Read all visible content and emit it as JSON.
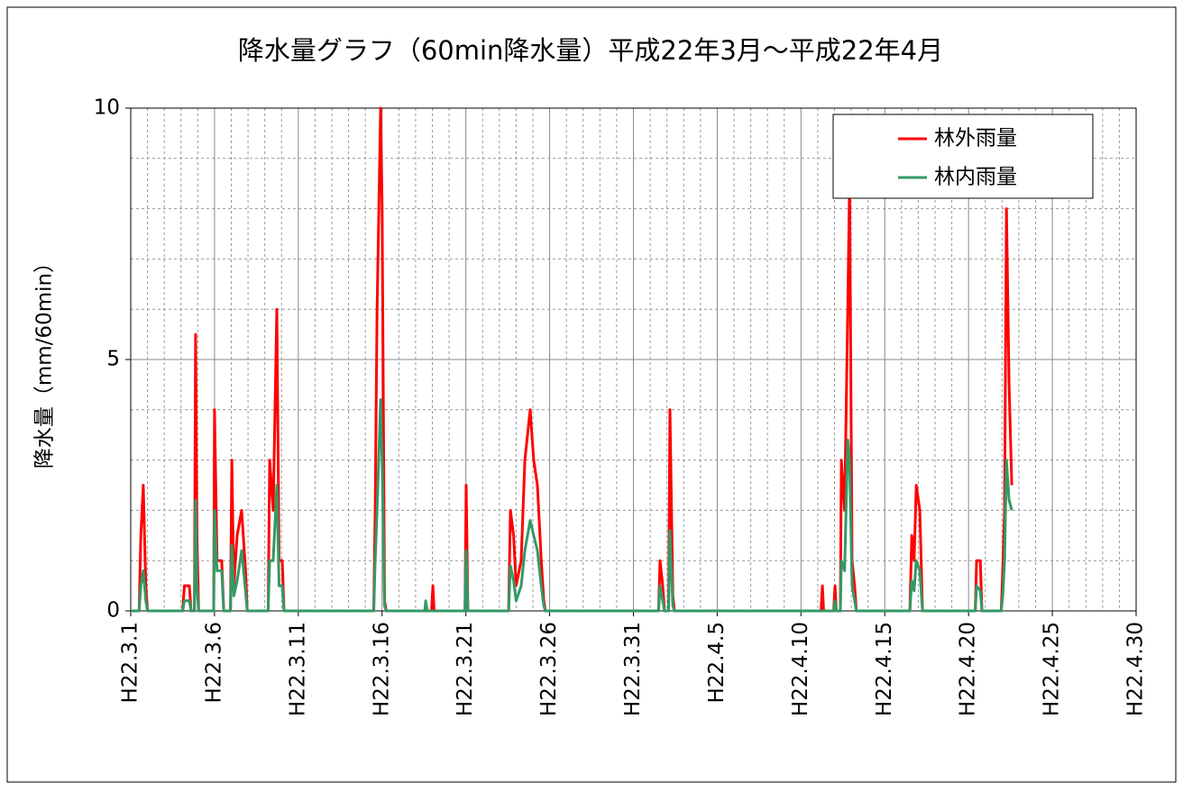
{
  "chart_data": {
    "type": "line",
    "title": "降水量グラフ（60min降水量）平成22年3月～平成22年4月",
    "y_label": "降水量（mm/60min）",
    "x": [
      0,
      0.5,
      0.6,
      0.75,
      0.9,
      1.0,
      3.1,
      3.2,
      3.5,
      3.6,
      3.8,
      3.87,
      3.95,
      4.05,
      4.95,
      5.0,
      5.15,
      5.43,
      5.55,
      5.95,
      6.03,
      6.15,
      6.35,
      6.62,
      6.85,
      6.95,
      8.2,
      8.29,
      8.5,
      8.72,
      8.85,
      9.04,
      9.15,
      14.5,
      14.59,
      14.7,
      14.91,
      15.0,
      15.15,
      15.25,
      17.55,
      17.6,
      17.7,
      17.95,
      18.03,
      18.1,
      19.95,
      20.02,
      20.12,
      22.55,
      22.66,
      22.85,
      23.0,
      23.3,
      23.52,
      23.84,
      24.05,
      24.27,
      24.5,
      24.65,
      24.75,
      31.5,
      31.59,
      31.75,
      31.85,
      32.1,
      32.18,
      32.35,
      32.45,
      41.2,
      41.28,
      41.35,
      41.95,
      42.03,
      42.1,
      42.35,
      42.41,
      42.6,
      42.79,
      42.9,
      43.05,
      43.2,
      43.3,
      46.5,
      46.61,
      46.75,
      46.88,
      47.09,
      47.25,
      50.4,
      50.48,
      50.7,
      50.8,
      51.95,
      52.04,
      52.15,
      52.26,
      52.42,
      52.58
    ],
    "series": [
      {
        "name": "林外雨量",
        "color": "#ff0000",
        "values": [
          0,
          0,
          1.5,
          2.5,
          0.5,
          0,
          0,
          0.5,
          0.5,
          0,
          0,
          5.5,
          1.5,
          0,
          0,
          4,
          1,
          1,
          0,
          0,
          3,
          0.5,
          1.5,
          2,
          0.8,
          0,
          0,
          3,
          2,
          6,
          1,
          1,
          0,
          0,
          2,
          6,
          10,
          8,
          0.2,
          0,
          0,
          0,
          0,
          0,
          0.5,
          0,
          0,
          2.5,
          0,
          0,
          2,
          1.5,
          0.5,
          1,
          3,
          4,
          3,
          2.5,
          1,
          0.2,
          0,
          0,
          1,
          0.5,
          0,
          0,
          4,
          0.3,
          0,
          0,
          0.5,
          0,
          0,
          0.5,
          0,
          0,
          3,
          2,
          6,
          8.5,
          1,
          0.5,
          0,
          0,
          1.5,
          1,
          2.5,
          2,
          0,
          0,
          1,
          1,
          0,
          0,
          0.8,
          2,
          8,
          4.5,
          2.5
        ]
      },
      {
        "name": "林内雨量",
        "color": "#339966",
        "values": [
          0,
          0,
          0.5,
          0.8,
          0.2,
          0,
          0,
          0.2,
          0.2,
          0,
          0,
          2.2,
          0.5,
          0,
          0,
          2,
          0.8,
          0.8,
          0,
          0,
          1.3,
          0.3,
          0.6,
          1.2,
          0.4,
          0,
          0,
          1,
          1,
          2.5,
          0.5,
          0.5,
          0,
          0,
          1,
          2,
          4.2,
          3,
          0.1,
          0,
          0,
          0.2,
          0,
          0,
          0,
          0,
          0,
          1.2,
          0,
          0,
          0.9,
          0.6,
          0.2,
          0.5,
          1.2,
          1.8,
          1.5,
          1.2,
          0.5,
          0.1,
          0,
          0,
          0.5,
          0.2,
          0,
          0,
          1.6,
          0.1,
          0,
          0,
          0,
          0,
          0,
          0.2,
          0,
          0,
          1,
          0.8,
          3.4,
          3,
          0.5,
          0.2,
          0,
          0,
          0.6,
          0.4,
          1,
          0.8,
          0,
          0,
          0.5,
          0.4,
          0,
          0,
          0.3,
          1,
          3,
          2.2,
          2
        ]
      }
    ],
    "xlim": [
      0,
      60
    ],
    "xticks": [
      {
        "value": 0,
        "label": "H22.3.1"
      },
      {
        "value": 5,
        "label": "H22.3.6"
      },
      {
        "value": 10,
        "label": "H22.3.11"
      },
      {
        "value": 15,
        "label": "H22.3.16"
      },
      {
        "value": 20,
        "label": "H22.3.21"
      },
      {
        "value": 25,
        "label": "H22.3.26"
      },
      {
        "value": 30,
        "label": "H22.3.31"
      },
      {
        "value": 35,
        "label": "H22.4.5"
      },
      {
        "value": 40,
        "label": "H22.4.10"
      },
      {
        "value": 45,
        "label": "H22.4.15"
      },
      {
        "value": 50,
        "label": "H22.4.20"
      },
      {
        "value": 55,
        "label": "H22.4.25"
      },
      {
        "value": 60,
        "label": "H22.4.30"
      }
    ],
    "ylim": [
      0,
      10
    ],
    "yticks": [
      0,
      5,
      10
    ],
    "grid": true,
    "legend": "upper right"
  }
}
